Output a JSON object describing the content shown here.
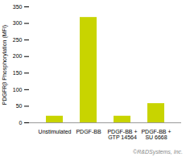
{
  "chart_data": {
    "type": "bar",
    "categories": [
      "Unstimulated",
      "PDGF-BB",
      "PDGF-BB + GTP 14564",
      "PDGF-BB + SU 6668"
    ],
    "values": [
      20,
      318,
      20,
      58
    ],
    "color": "#c8d400",
    "ylabel": "PDGFRβ Phosphorylation (MFI)",
    "ylim": [
      0,
      350
    ],
    "yticks": [
      0,
      50,
      100,
      150,
      200,
      250,
      300,
      350
    ],
    "annotations": [
      "©R&DSystems, Inc."
    ]
  }
}
